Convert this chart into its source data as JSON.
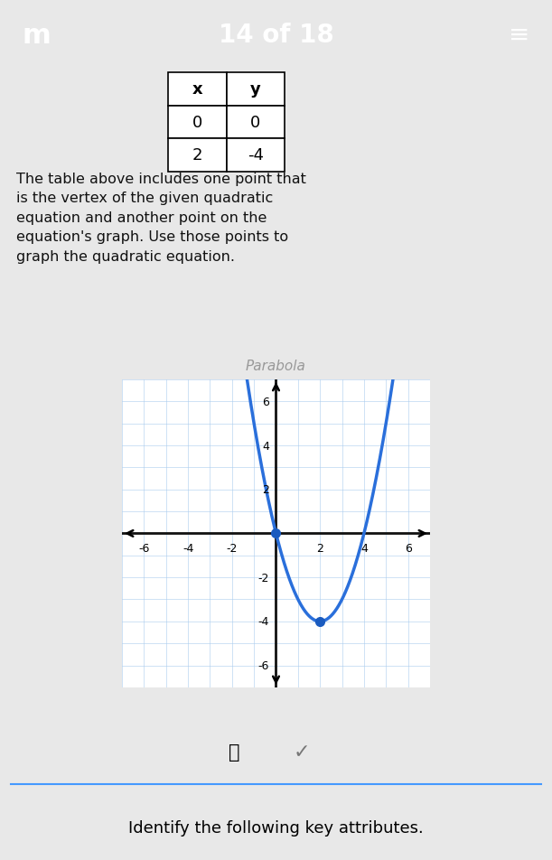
{
  "title": "14 of 18",
  "table_data": [
    [
      "x",
      "y"
    ],
    [
      "0",
      "0"
    ],
    [
      "2",
      "-4"
    ]
  ],
  "description_lines": [
    "The table above includes one point that",
    "is the vertex of the given quadratic",
    "equation and another point on the",
    "equation's graph. Use those points to",
    "graph the quadratic equation."
  ],
  "graph_title": "Parabola",
  "xlim": [
    -7,
    7
  ],
  "ylim": [
    -7,
    7
  ],
  "xticks": [
    -6,
    -4,
    -2,
    2,
    4,
    6
  ],
  "yticks": [
    -6,
    -4,
    -2,
    2,
    4,
    6
  ],
  "vertex": [
    2,
    -4
  ],
  "point2": [
    0,
    0
  ],
  "curve_color": "#2a6fdb",
  "dot_color": "#1a5bbf",
  "dot_size": 7,
  "header_color": "#5aaa50",
  "background_body": "#e8e8e8",
  "background_graph_border": "#4aaa40",
  "background_graph_inner": "#ffffff",
  "background_icons_bar": "#e0e0e0",
  "grid_color": "#aaccee",
  "axis_color": "#111111",
  "text_color": "#111111",
  "footer_text": "Identify the following key attributes.",
  "footer_line_color": "#4499ff",
  "footer_bg": "#ffffff"
}
